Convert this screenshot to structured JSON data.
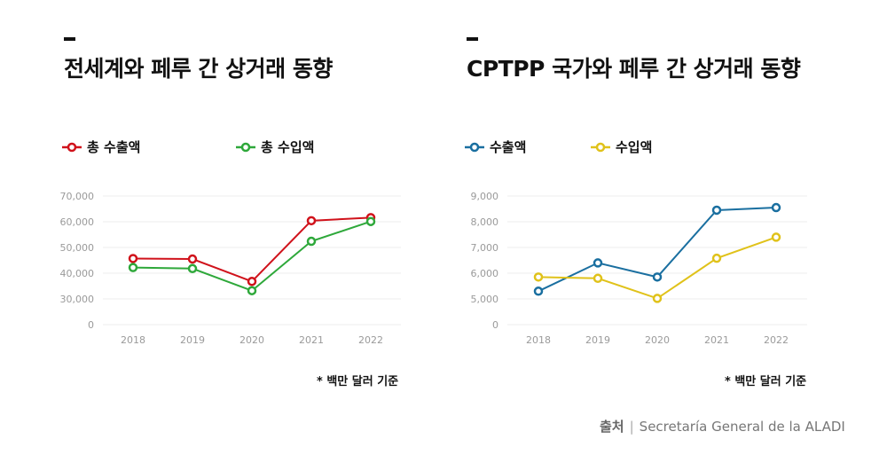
{
  "panels": [
    {
      "title": "전세계와 페루 간 상거래 동향",
      "note": "* 백만 달러 기준",
      "legend": [
        {
          "label": "총 수출액",
          "color": "#d0121b"
        },
        {
          "label": "총 수입액",
          "color": "#2ea83a"
        }
      ]
    },
    {
      "title": "CPTPP 국가와 페루 간 상거래 동향",
      "note": "* 백만 달러 기준",
      "legend": [
        {
          "label": "수출액",
          "color": "#1a6fa0"
        },
        {
          "label": "수입액",
          "color": "#e0c21a"
        }
      ]
    }
  ],
  "source": {
    "label": "출처",
    "text": "Secretaría General de la ALADI"
  },
  "chart_data": [
    {
      "type": "line",
      "title": "전세계와 페루 간 상거래 동향",
      "categories": [
        "2018",
        "2019",
        "2020",
        "2021",
        "2022"
      ],
      "yticks": [
        "0",
        "30,000",
        "40,000",
        "50,000",
        "60,000",
        "70,000"
      ],
      "ylim": [
        0,
        70000
      ],
      "series": [
        {
          "name": "총 수출액",
          "color": "#d0121b",
          "values": [
            45700,
            45500,
            36800,
            60400,
            61600
          ]
        },
        {
          "name": "총 수입액",
          "color": "#2ea83a",
          "values": [
            42200,
            41800,
            33200,
            52400,
            60100
          ]
        }
      ]
    },
    {
      "type": "line",
      "title": "CPTPP 국가와 페루 간 상거래 동향",
      "categories": [
        "2018",
        "2019",
        "2020",
        "2021",
        "2022"
      ],
      "yticks": [
        "0",
        "5,000",
        "6,000",
        "7,000",
        "8,000",
        "9,000"
      ],
      "ylim": [
        0,
        9000
      ],
      "series": [
        {
          "name": "수출액",
          "color": "#1a6fa0",
          "values": [
            5300,
            6400,
            5850,
            8450,
            8550
          ]
        },
        {
          "name": "수입액",
          "color": "#e0c21a",
          "values": [
            5850,
            5800,
            5020,
            6580,
            7400
          ]
        }
      ]
    }
  ]
}
